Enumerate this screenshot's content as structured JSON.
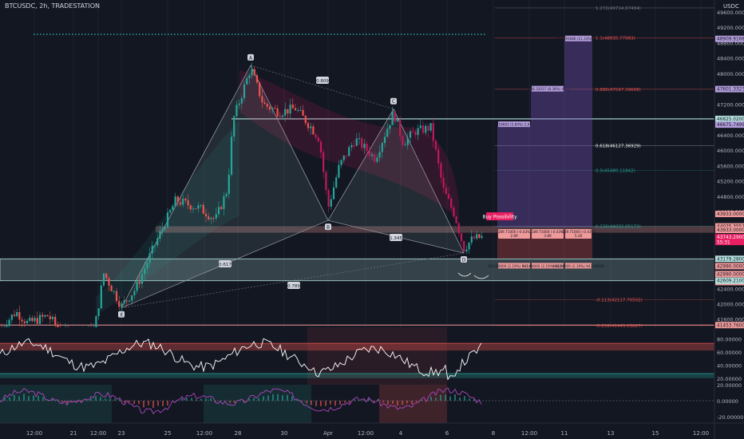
{
  "header": {
    "symbol": "BTCUSDC, 2h, TRADESTATION"
  },
  "axis": {
    "currency": "USDC"
  },
  "chart_data": {
    "type": "candlestick",
    "symbol": "BTCUSDC",
    "timeframe": "2h",
    "source": "TRADESTATION",
    "price_ticks": [
      {
        "v": 49600,
        "label": "49600.00000"
      },
      {
        "v": 49200,
        "label": "49200.00000"
      },
      {
        "v": 48800,
        "label": "48800.00000"
      },
      {
        "v": 48400,
        "label": "48400.00000"
      },
      {
        "v": 48000,
        "label": "48000.00000"
      },
      {
        "v": 47600,
        "label": "47600.00000"
      },
      {
        "v": 47200,
        "label": "47200.00000"
      },
      {
        "v": 46800,
        "label": "46800.00000"
      },
      {
        "v": 46400,
        "label": "46400.00000"
      },
      {
        "v": 46000,
        "label": "46000.00000"
      },
      {
        "v": 45600,
        "label": "45600.00000"
      },
      {
        "v": 45200,
        "label": "45200.00000"
      },
      {
        "v": 44800,
        "label": "44800.00000"
      },
      {
        "v": 44400,
        "label": "44400.00000"
      },
      {
        "v": 44000,
        "label": "44000.00000"
      },
      {
        "v": 43600,
        "label": "43600.00000"
      },
      {
        "v": 43200,
        "label": "43200.00000"
      },
      {
        "v": 42400,
        "label": "42400.00000"
      },
      {
        "v": 42000,
        "label": "42000.00000"
      },
      {
        "v": 41600,
        "label": "41600.00000"
      }
    ],
    "price_badges": [
      {
        "v": 48909.91686,
        "label": "48909.91686",
        "color": "#b39ddb",
        "fg": "#131722"
      },
      {
        "v": 47601.33237,
        "label": "47601.33237",
        "color": "#b39ddb",
        "fg": "#131722"
      },
      {
        "v": 46825.02,
        "label": "46825.02000",
        "color": "#b2dfdb",
        "fg": "#131722"
      },
      {
        "v": 46675.74993,
        "label": "46675.74993",
        "color": "#b39ddb",
        "fg": "#131722"
      },
      {
        "v": 44025.35571,
        "label": "44025.35571",
        "color": "#ef9a9a",
        "fg": "#131722"
      },
      {
        "v": 43933,
        "label": "43933.00000",
        "color": "#ef9a9a",
        "fg": "#131722"
      },
      {
        "v": 43743.29,
        "label": "43743.29000",
        "color": "#e91e63",
        "fg": "#ffffff",
        "sub": "55:31"
      },
      {
        "v": 43933,
        "label": "43933.00000",
        "color": "#ef9a9a",
        "fg": "#131722",
        "offset": -20
      },
      {
        "v": 43179.28,
        "label": "43179.28000",
        "color": "#b2dfdb",
        "fg": "#131722"
      },
      {
        "v": 42990,
        "label": "42990.00000",
        "color": "#ef9a9a",
        "fg": "#131722"
      },
      {
        "v": 42990,
        "label": "42990.00000",
        "color": "#ef9a9a",
        "fg": "#131722",
        "offset": 10
      },
      {
        "v": 42990,
        "label": "42990.00000",
        "color": "#ef9a9a",
        "fg": "#131722",
        "offset": 20
      },
      {
        "v": 42609.21,
        "label": "42609.21000",
        "color": "#b2dfdb",
        "fg": "#131722"
      },
      {
        "v": 41453.76,
        "label": "41453.76000",
        "color": "#ef9a9a",
        "fg": "#131722"
      }
    ],
    "fib_levels": [
      {
        "label": "1.272(49714.67494)",
        "v": 49714.67494,
        "color": "#787b86"
      },
      {
        "label": "1.1(48935.77983)",
        "v": 48935.77983,
        "color": "#ef5350"
      },
      {
        "label": "0.886(47597.39668)",
        "v": 47597.39668,
        "color": "#ef5350"
      },
      {
        "label": "0.618(46127.36929)",
        "v": 46127.36929,
        "color": "#ffffff"
      },
      {
        "label": "0.5(45480.11842)",
        "v": 45480.11842,
        "color": "#26a69a"
      },
      {
        "label": "0.236(44032.05173)",
        "v": 44032.05173,
        "color": "#26a69a"
      },
      {
        "label": "-0.113(42117.70502)",
        "v": 42117.70502,
        "color": "#ef5350"
      },
      {
        "label": "-0.236(41443.03827)",
        "v": 41443.03827,
        "color": "#ef5350"
      }
    ],
    "pattern_points": [
      {
        "label": "X",
        "date": "Mar 22 18:00",
        "v": 41900
      },
      {
        "label": "A",
        "date": "Mar 28 08:00",
        "v": 48200
      },
      {
        "label": "B",
        "date": "Mar 30 14:00",
        "v": 44180
      },
      {
        "label": "C",
        "date": "Apr 2 00:00",
        "v": 47100
      },
      {
        "label": "D",
        "date": "Apr 6 00:00",
        "v": 43330
      }
    ],
    "pattern_ratios": [
      {
        "label": "0.809"
      },
      {
        "label": "1.345"
      },
      {
        "label": "0.617"
      },
      {
        "label": "0.789"
      }
    ],
    "annotations": {
      "buy_label": "Buy Possibility",
      "target_boxes": [
        {
          "label": "2742.19693 (5.84%) 2,959.95"
        },
        {
          "label": "3668.32037 (8.38%) 4,89"
        },
        {
          "label": "4976.91686 (11.33%) 6,28"
        }
      ],
      "stop_boxes": [
        {
          "label": "-189.71000 (-0.43%)",
          "sub": "2.89"
        },
        {
          "label": "-189.71000 (-0.43%)",
          "sub": "3.89"
        },
        {
          "label": "-189.71000 (-0.43%)",
          "sub": "5.28"
        }
      ],
      "entry_boxes": [
        {
          "label": "943.00000 (2.19%) 943.00000"
        },
        {
          "label": "943.00000 (2.19%) 943.00000"
        },
        {
          "label": "943.00000 (2.19%) 943.00000"
        }
      ]
    },
    "time_ticks": [
      "12:00",
      "21",
      "12:00",
      "23",
      "25",
      "12:00",
      "28",
      "30",
      "Apr",
      "12:00",
      "4",
      "6",
      "8",
      "12:00",
      "11",
      "13",
      "15",
      "12:00"
    ],
    "osc1_ticks": [
      "80.00000",
      "60.00000",
      "40.00000",
      "20.00000"
    ],
    "osc2_ticks": [
      "20.00000",
      "0.00000",
      "-20.00000"
    ]
  }
}
